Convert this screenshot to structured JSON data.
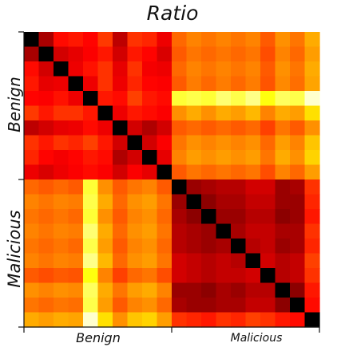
{
  "chart_data": {
    "type": "heatmap",
    "title": "Ratio",
    "colormap": "hot",
    "groups_x": [
      "Benign",
      "Malicious"
    ],
    "groups_y": [
      "Benign",
      "Malicious"
    ],
    "size": 20,
    "values": [
      [
        0.0,
        0.24,
        0.38,
        0.4,
        0.37,
        0.45,
        0.27,
        0.44,
        0.42,
        0.34,
        0.52,
        0.56,
        0.54,
        0.56,
        0.54,
        0.56,
        0.5,
        0.58,
        0.54,
        0.62
      ],
      [
        0.24,
        0.0,
        0.3,
        0.33,
        0.36,
        0.4,
        0.3,
        0.4,
        0.37,
        0.31,
        0.5,
        0.54,
        0.52,
        0.54,
        0.52,
        0.54,
        0.48,
        0.56,
        0.52,
        0.6
      ],
      [
        0.38,
        0.3,
        0.0,
        0.34,
        0.39,
        0.44,
        0.33,
        0.44,
        0.35,
        0.34,
        0.52,
        0.56,
        0.54,
        0.56,
        0.54,
        0.56,
        0.5,
        0.58,
        0.54,
        0.62
      ],
      [
        0.4,
        0.33,
        0.34,
        0.0,
        0.34,
        0.44,
        0.34,
        0.42,
        0.37,
        0.36,
        0.5,
        0.55,
        0.52,
        0.55,
        0.52,
        0.55,
        0.49,
        0.57,
        0.53,
        0.61
      ],
      [
        0.37,
        0.36,
        0.39,
        0.34,
        0.0,
        0.4,
        0.38,
        0.46,
        0.4,
        0.38,
        0.8,
        0.82,
        0.8,
        0.86,
        0.82,
        0.88,
        0.76,
        0.84,
        0.82,
        0.95
      ],
      [
        0.45,
        0.4,
        0.44,
        0.44,
        0.4,
        0.0,
        0.34,
        0.4,
        0.38,
        0.36,
        0.58,
        0.62,
        0.58,
        0.62,
        0.6,
        0.64,
        0.56,
        0.62,
        0.6,
        0.7
      ],
      [
        0.27,
        0.3,
        0.33,
        0.34,
        0.38,
        0.34,
        0.0,
        0.3,
        0.25,
        0.3,
        0.5,
        0.52,
        0.5,
        0.52,
        0.5,
        0.52,
        0.46,
        0.54,
        0.5,
        0.58
      ],
      [
        0.44,
        0.4,
        0.44,
        0.42,
        0.46,
        0.4,
        0.3,
        0.0,
        0.3,
        0.36,
        0.54,
        0.58,
        0.56,
        0.58,
        0.56,
        0.58,
        0.52,
        0.6,
        0.56,
        0.66
      ],
      [
        0.42,
        0.37,
        0.35,
        0.37,
        0.4,
        0.38,
        0.25,
        0.3,
        0.0,
        0.33,
        0.56,
        0.6,
        0.58,
        0.6,
        0.58,
        0.6,
        0.54,
        0.62,
        0.58,
        0.68
      ],
      [
        0.34,
        0.31,
        0.34,
        0.36,
        0.38,
        0.36,
        0.3,
        0.36,
        0.33,
        0.0,
        0.5,
        0.54,
        0.52,
        0.54,
        0.52,
        0.54,
        0.48,
        0.56,
        0.52,
        0.6
      ],
      [
        0.52,
        0.5,
        0.52,
        0.5,
        0.8,
        0.58,
        0.5,
        0.54,
        0.56,
        0.5,
        0.0,
        0.22,
        0.24,
        0.26,
        0.26,
        0.3,
        0.3,
        0.22,
        0.24,
        0.44
      ],
      [
        0.56,
        0.54,
        0.56,
        0.55,
        0.82,
        0.62,
        0.52,
        0.58,
        0.6,
        0.54,
        0.22,
        0.0,
        0.2,
        0.24,
        0.24,
        0.28,
        0.28,
        0.22,
        0.22,
        0.42
      ],
      [
        0.54,
        0.52,
        0.54,
        0.52,
        0.8,
        0.58,
        0.5,
        0.56,
        0.58,
        0.52,
        0.24,
        0.2,
        0.0,
        0.22,
        0.22,
        0.26,
        0.26,
        0.2,
        0.22,
        0.4
      ],
      [
        0.56,
        0.54,
        0.56,
        0.55,
        0.86,
        0.62,
        0.52,
        0.58,
        0.6,
        0.54,
        0.26,
        0.24,
        0.22,
        0.0,
        0.24,
        0.28,
        0.28,
        0.24,
        0.24,
        0.44
      ],
      [
        0.54,
        0.52,
        0.54,
        0.52,
        0.82,
        0.6,
        0.5,
        0.56,
        0.58,
        0.52,
        0.26,
        0.24,
        0.22,
        0.24,
        0.0,
        0.26,
        0.28,
        0.22,
        0.24,
        0.42
      ],
      [
        0.56,
        0.54,
        0.56,
        0.55,
        0.88,
        0.64,
        0.52,
        0.58,
        0.6,
        0.54,
        0.3,
        0.28,
        0.26,
        0.28,
        0.26,
        0.0,
        0.3,
        0.26,
        0.28,
        0.46
      ],
      [
        0.5,
        0.48,
        0.5,
        0.49,
        0.76,
        0.56,
        0.46,
        0.52,
        0.54,
        0.48,
        0.3,
        0.28,
        0.26,
        0.28,
        0.28,
        0.3,
        0.0,
        0.26,
        0.28,
        0.44
      ],
      [
        0.58,
        0.56,
        0.58,
        0.57,
        0.84,
        0.62,
        0.54,
        0.6,
        0.62,
        0.56,
        0.22,
        0.22,
        0.2,
        0.24,
        0.22,
        0.26,
        0.26,
        0.0,
        0.2,
        0.4
      ],
      [
        0.54,
        0.52,
        0.54,
        0.53,
        0.82,
        0.6,
        0.5,
        0.56,
        0.58,
        0.52,
        0.24,
        0.22,
        0.22,
        0.24,
        0.24,
        0.28,
        0.28,
        0.2,
        0.0,
        0.38
      ],
      [
        0.62,
        0.6,
        0.62,
        0.61,
        0.95,
        0.7,
        0.58,
        0.66,
        0.68,
        0.6,
        0.44,
        0.42,
        0.4,
        0.44,
        0.42,
        0.46,
        0.44,
        0.4,
        0.38,
        0.0
      ]
    ]
  }
}
